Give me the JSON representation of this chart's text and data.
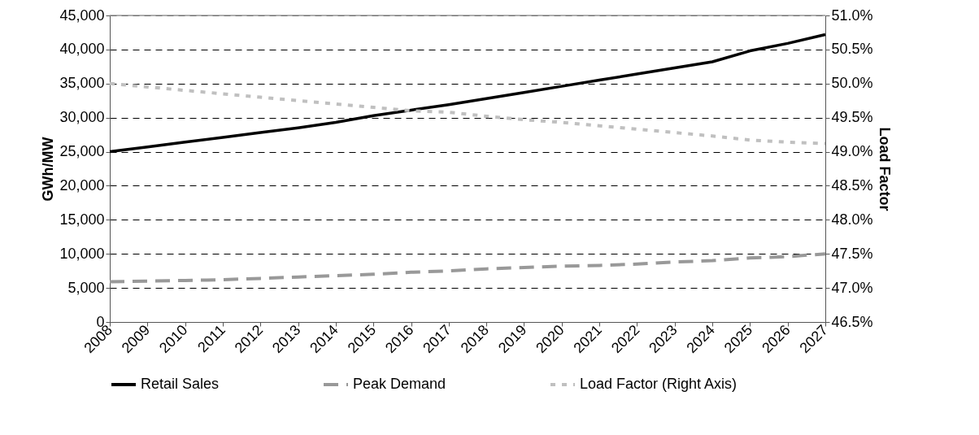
{
  "chart_data": {
    "type": "line",
    "ylabel": "GWh/MW",
    "y2label": "Load Factor",
    "categories": [
      "2008",
      "2009",
      "2010",
      "2011",
      "2012",
      "2013",
      "2014",
      "2015",
      "2016",
      "2017",
      "2018",
      "2019",
      "2020",
      "2021",
      "2022",
      "2023",
      "2024",
      "2025",
      "2026",
      "2027"
    ],
    "series": [
      {
        "name": "Retail Sales",
        "color": "#000000",
        "line_style": "solid",
        "values": [
          25000,
          25700,
          26400,
          27100,
          27800,
          28500,
          29300,
          30300,
          31100,
          31900,
          32800,
          33700,
          34600,
          35500,
          36400,
          37300,
          38200,
          39800,
          40900,
          42200
        ]
      },
      {
        "name": "Peak Demand",
        "color": "#999999",
        "line_style": "dashed",
        "values": [
          5900,
          6000,
          6100,
          6200,
          6400,
          6600,
          6800,
          7000,
          7300,
          7500,
          7800,
          8000,
          8200,
          8300,
          8500,
          8800,
          9000,
          9400,
          9600,
          10000
        ]
      },
      {
        "name": "Load Factor (Right Axis)",
        "color": "#c0c0c0",
        "line_style": "dotted",
        "axis": "y2",
        "values": [
          50.0,
          49.95,
          49.9,
          49.85,
          49.8,
          49.75,
          49.7,
          49.65,
          49.6,
          49.58,
          49.52,
          49.47,
          49.43,
          49.38,
          49.33,
          49.28,
          49.23,
          49.17,
          49.14,
          49.12
        ]
      }
    ],
    "ylim": [
      0,
      45000
    ],
    "yticks": [
      {
        "value": 0,
        "label": "0"
      },
      {
        "value": 5000,
        "label": "5,000"
      },
      {
        "value": 10000,
        "label": "10,000"
      },
      {
        "value": 15000,
        "label": "15,000"
      },
      {
        "value": 20000,
        "label": "20,000"
      },
      {
        "value": 25000,
        "label": "25,000"
      },
      {
        "value": 30000,
        "label": "30,000"
      },
      {
        "value": 35000,
        "label": "35,000"
      },
      {
        "value": 40000,
        "label": "40,000"
      },
      {
        "value": 45000,
        "label": "45,000"
      }
    ],
    "y2lim": [
      46.5,
      51.0
    ],
    "y2ticks": [
      {
        "value": 46.5,
        "label": "46.5%"
      },
      {
        "value": 47.0,
        "label": "47.0%"
      },
      {
        "value": 47.5,
        "label": "47.5%"
      },
      {
        "value": 48.0,
        "label": "48.0%"
      },
      {
        "value": 48.5,
        "label": "48.5%"
      },
      {
        "value": 49.0,
        "label": "49.0%"
      },
      {
        "value": 49.5,
        "label": "49.5%"
      },
      {
        "value": 50.0,
        "label": "50.0%"
      },
      {
        "value": 50.5,
        "label": "50.5%"
      },
      {
        "value": 51.0,
        "label": "51.0%"
      }
    ],
    "grid": "y",
    "legend": "bottom",
    "marker": "none"
  }
}
